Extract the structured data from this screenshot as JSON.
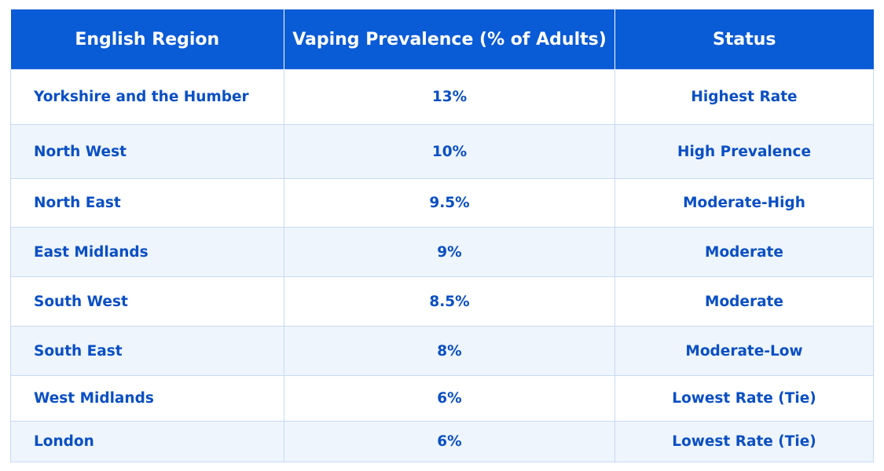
{
  "table": {
    "headers": [
      "English Region",
      "Vaping Prevalence (% of Adults)",
      "Status"
    ],
    "rows": [
      {
        "region": "Yorkshire and the Humber",
        "prevalence": "13%",
        "status": "Highest Rate"
      },
      {
        "region": "North West",
        "prevalence": "10%",
        "status": "High Prevalence"
      },
      {
        "region": "North East",
        "prevalence": "9.5%",
        "status": "Moderate-High"
      },
      {
        "region": "East Midlands",
        "prevalence": "9%",
        "status": "Moderate"
      },
      {
        "region": "South West",
        "prevalence": "8.5%",
        "status": "Moderate"
      },
      {
        "region": "South East",
        "prevalence": "8%",
        "status": "Moderate-Low"
      },
      {
        "region": "West Midlands",
        "prevalence": "6%",
        "status": "Lowest Rate (Tie)"
      },
      {
        "region": "London",
        "prevalence": "6%",
        "status": "Lowest Rate (Tie)"
      }
    ],
    "colors": {
      "header_bg": "#0a5bd6",
      "header_text": "#ffffff",
      "cell_text": "#0a4fc4",
      "row_alt_bg": "#eef5fd",
      "border": "#c9d9f3"
    }
  }
}
